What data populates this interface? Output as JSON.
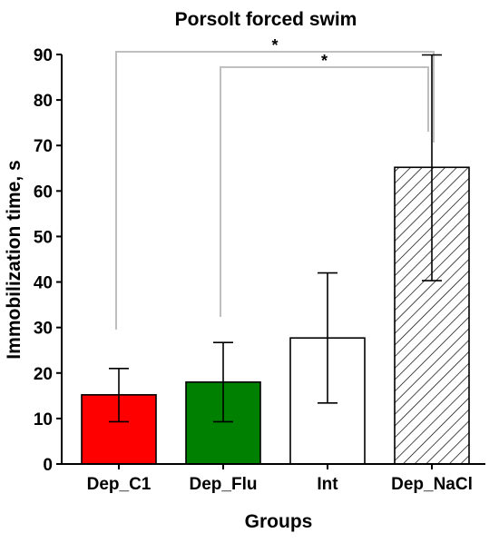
{
  "chart_data": {
    "type": "bar",
    "title": "Porsolt forced swim",
    "xlabel": "Groups",
    "ylabel": "Immobilization time, s",
    "ylim": [
      0,
      90
    ],
    "yticks": [
      "0",
      "10",
      "20",
      "30",
      "40",
      "50",
      "60",
      "70",
      "80",
      "90"
    ],
    "categories": [
      "Dep_C1",
      "Dep_Flu",
      "Int",
      "Dep_NaCl"
    ],
    "values": [
      15.2,
      18.0,
      27.7,
      65.2
    ],
    "error_low": [
      9.3,
      9.3,
      13.4,
      40.3
    ],
    "error_high": [
      21.0,
      26.7,
      42.0,
      89.9
    ],
    "bar_fills": [
      "#ff0000",
      "#008000",
      "#ffffff",
      "hatch"
    ],
    "bracket_color": "#bfbfbf",
    "significance": [
      {
        "from": "Dep_C1",
        "to": "Dep_NaCl",
        "label": "*"
      },
      {
        "from": "Dep_Flu",
        "to": "Dep_NaCl",
        "label": "*"
      }
    ],
    "grid": false,
    "legend": "none"
  }
}
